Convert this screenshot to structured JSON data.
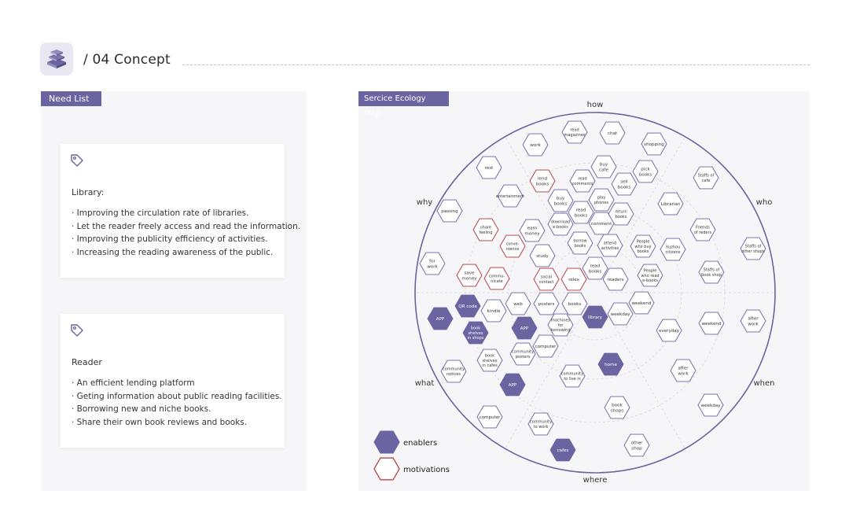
{
  "header": {
    "title": "/ 04  Concept",
    "logo_icon": "books-stack-icon"
  },
  "need_list": {
    "tag": "Need List",
    "cards": [
      {
        "icon": "tag-icon",
        "heading": "Library:",
        "items": [
          "· Improving the circulation rate of libraries.",
          "· Let the reader freely access and read the information.",
          "· Improving the publicity efficiency of activities.",
          "· Increasing the reading awareness of the public."
        ]
      },
      {
        "icon": "tag-icon",
        "heading": "Reader",
        "items": [
          "· An efficient lending platform",
          "· Geting information about public reading facilities.",
          "· Borrowing new and niche books.",
          "· Share their own book reviews and books."
        ]
      }
    ]
  },
  "ecology_map": {
    "tag": "Sercice Ecology Map",
    "sectors": [
      "how",
      "who",
      "when",
      "where",
      "what",
      "why"
    ],
    "legend": [
      {
        "label": "enablers",
        "type": "enabler"
      },
      {
        "label": "motivations",
        "type": "motivation"
      }
    ],
    "colors": {
      "accent": "#6a64a0",
      "enabler_fill": "#6a64a0",
      "default_stroke": "#6a64a0",
      "motivation_stroke": "#b0333a"
    },
    "nodes": [
      {
        "label": "read\nmagazines",
        "type": "default"
      },
      {
        "label": "chat",
        "type": "default"
      },
      {
        "label": "work",
        "type": "default"
      },
      {
        "label": "shopping",
        "type": "default"
      },
      {
        "label": "buy\ncafe",
        "type": "default"
      },
      {
        "label": "pick\nbooks",
        "type": "default"
      },
      {
        "label": "rest",
        "type": "default"
      },
      {
        "label": "lend\nbooks",
        "type": "motivation"
      },
      {
        "label": "read\ncomments",
        "type": "default"
      },
      {
        "label": "sell\nbooks",
        "type": "default"
      },
      {
        "label": "Staffs of\ncafe",
        "type": "default"
      },
      {
        "label": "entertainment",
        "type": "default"
      },
      {
        "label": "buy\nbooks",
        "type": "default"
      },
      {
        "label": "play\nphones",
        "type": "default"
      },
      {
        "label": "Librarian",
        "type": "default"
      },
      {
        "label": "passing",
        "type": "default"
      },
      {
        "label": "read\nbooks",
        "type": "default"
      },
      {
        "label": "return\nbooks",
        "type": "default"
      },
      {
        "label": "share\nfeeling",
        "type": "motivation"
      },
      {
        "label": "download\ne-books",
        "type": "default"
      },
      {
        "label": "earn\nmoney",
        "type": "default"
      },
      {
        "label": "comment",
        "type": "default"
      },
      {
        "label": "Friends\nof reders",
        "type": "default"
      },
      {
        "label": "conve-\nnience",
        "type": "motivation"
      },
      {
        "label": "borrow\nbooks",
        "type": "default"
      },
      {
        "label": "attend\nactivities",
        "type": "default"
      },
      {
        "label": "People\nwho buy\nbooks",
        "type": "default"
      },
      {
        "label": "Xuzhou\ncitizens",
        "type": "default"
      },
      {
        "label": "Staffs of\nother shops",
        "type": "default"
      },
      {
        "label": "for\nwork",
        "type": "default"
      },
      {
        "label": "study",
        "type": "default"
      },
      {
        "label": "read\nbooks",
        "type": "default"
      },
      {
        "label": "save\nmoney",
        "type": "motivation"
      },
      {
        "label": "commu-\nnicate",
        "type": "motivation"
      },
      {
        "label": "social\ncontact",
        "type": "motivation"
      },
      {
        "label": "relex",
        "type": "motivation"
      },
      {
        "label": "readers",
        "type": "default"
      },
      {
        "label": "People\nwho read\ne-books",
        "type": "default"
      },
      {
        "label": "Staffs of\nbook shop",
        "type": "default"
      },
      {
        "label": "QR code",
        "type": "enabler"
      },
      {
        "label": "web",
        "type": "default"
      },
      {
        "label": "posters",
        "type": "default"
      },
      {
        "label": "books",
        "type": "default"
      },
      {
        "label": "weekend",
        "type": "default"
      },
      {
        "label": "APP",
        "type": "enabler"
      },
      {
        "label": "kindle",
        "type": "default"
      },
      {
        "label": "library",
        "type": "enabler"
      },
      {
        "label": "weekday",
        "type": "default"
      },
      {
        "label": "machines\nfor\nborrowing",
        "type": "default"
      },
      {
        "label": "book\nshelves\nin shops",
        "type": "enabler"
      },
      {
        "label": "APP",
        "type": "enabler"
      },
      {
        "label": "weekend",
        "type": "default"
      },
      {
        "label": "after\nwork",
        "type": "default"
      },
      {
        "label": "everyday",
        "type": "default"
      },
      {
        "label": "computer",
        "type": "default"
      },
      {
        "label": "community\nposters",
        "type": "default"
      },
      {
        "label": "book\nshelves\nin cafes",
        "type": "default"
      },
      {
        "label": "home",
        "type": "enabler"
      },
      {
        "label": "community\nnotices",
        "type": "default"
      },
      {
        "label": "community\nto live in",
        "type": "default"
      },
      {
        "label": "after\nwork",
        "type": "default"
      },
      {
        "label": "APP",
        "type": "enabler"
      },
      {
        "label": "book\nshops",
        "type": "default"
      },
      {
        "label": "weekday",
        "type": "default"
      },
      {
        "label": "computer",
        "type": "default"
      },
      {
        "label": "community\nto work",
        "type": "default"
      },
      {
        "label": "cafes",
        "type": "enabler"
      },
      {
        "label": "other\nshop",
        "type": "default"
      }
    ]
  }
}
